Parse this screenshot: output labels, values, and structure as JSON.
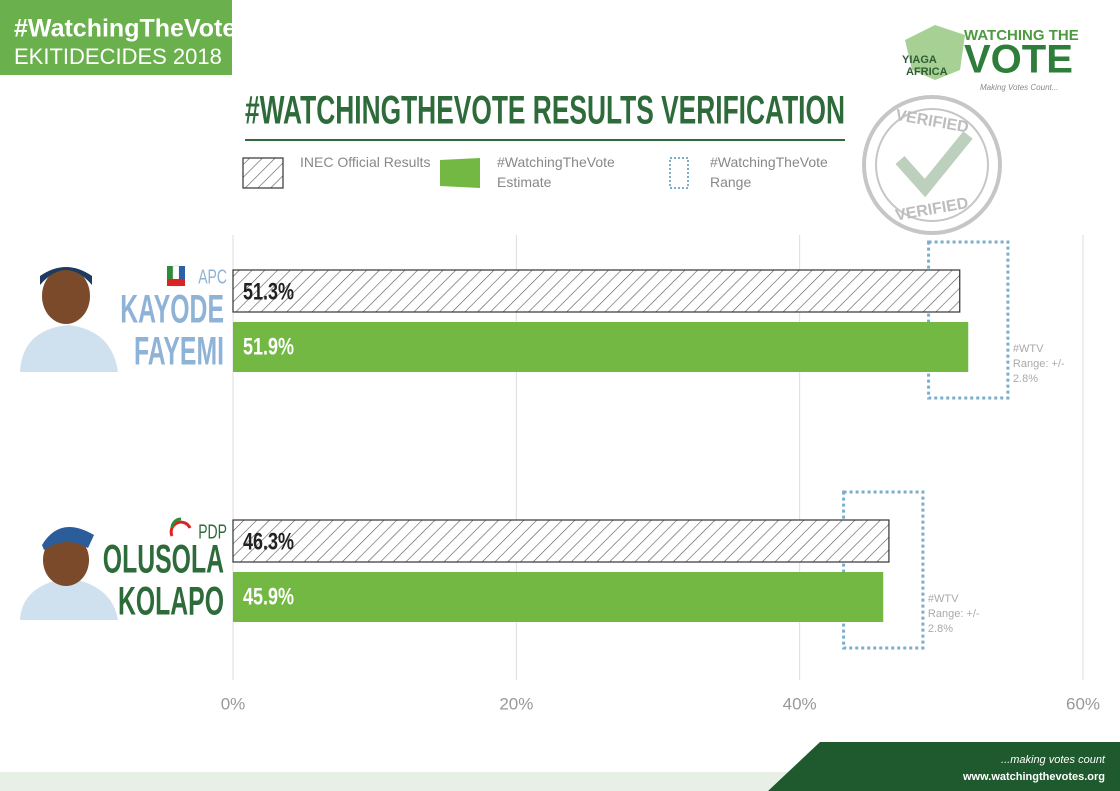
{
  "header": {
    "hashtag": "#WatchingTheVote",
    "event": "EKITIDECIDES 2018",
    "logo": {
      "org_top": "YIAGA",
      "org_bottom": "AFRICA",
      "brand_top": "WATCHING THE",
      "brand_bottom": "VOTE",
      "tagline": "Making Votes Count..."
    },
    "stamp": "VERIFIED"
  },
  "chart_data": {
    "type": "bar",
    "orientation": "horizontal",
    "title": "#WATCHINGTHEVOTE RESULTS VERIFICATION",
    "categories": [
      [
        "KAYODE",
        "FAYEMI"
      ],
      [
        "OLUSOLA",
        "KOLAPO"
      ]
    ],
    "parties": [
      "APC",
      "PDP"
    ],
    "series": [
      {
        "name": "INEC Official Results",
        "pattern": "hatch",
        "color": "#333333",
        "values": [
          51.3,
          46.3
        ],
        "value_labels": [
          "51.3%",
          "46.3%"
        ]
      },
      {
        "name": "#WatchingTheVote Estimate",
        "color": "#72b843",
        "values": [
          51.9,
          45.9
        ],
        "value_labels": [
          "51.9%",
          "45.9%"
        ]
      }
    ],
    "range": {
      "name": "#WatchingTheVote Range",
      "color": "#7aaecb",
      "margin": 2.8,
      "labels": [
        "#WTV Range: +/- 2.8%",
        "#WTV Range: +/- 2.8%"
      ]
    },
    "xlim": [
      0,
      60
    ],
    "xticks": [
      {
        "value": 0,
        "label": "0%"
      },
      {
        "value": 20,
        "label": "20%"
      },
      {
        "value": 40,
        "label": "40%"
      },
      {
        "value": 60,
        "label": "60%"
      }
    ],
    "grid": true
  },
  "footer": {
    "slogan": "...making votes count",
    "url": "www.watchingthevotes.org"
  }
}
